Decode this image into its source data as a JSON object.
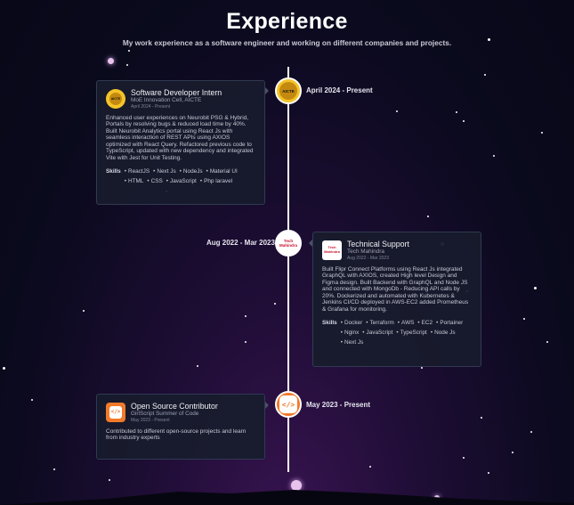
{
  "header": {
    "title": "Experience",
    "subtitle": "My work experience as a software engineer and working on different companies and projects."
  },
  "experiences": [
    {
      "role": "Software Developer Intern",
      "org": "MoE Innovation Cell, AICTE",
      "period": "April 2024 - Present",
      "date": "April 2024 - Present",
      "logo_text": "AICTE",
      "description": "Enhanced user experiences on Neurobit PSG & Hybrid, Portals by resolving bugs & reduced load time by 40%. Built Neurobit Analytics portal using React Js with seamless interaction of REST APIs using AXIOS optimized with React Query. Refactored previous code to TypeScript, updated with new dependency and integrated Vite with Jest for Unit Testing.",
      "skills_label": "Skills",
      "skills": [
        "ReactJS",
        "Next Js",
        "NodeJs",
        "Material UI",
        "HTML",
        "CSS",
        "JavaScript",
        "Php laravel"
      ]
    },
    {
      "role": "Technical Support",
      "org": "Tech Mahindra",
      "period": "Aug 2022 - Mar 2023",
      "date": "Aug 2022 - Mar 2023",
      "logo_text": "Tech Mahindra",
      "description": "Built Flipr Connect Platforms using React Js integrated GraphQL with AXIOS, created High level Design and Figma design. Built Backend with GraphQL and Node JS and connected with MongoDb - Reducing API calls by 20%. Dockerized and automated with Kubernetes & Jenkins CI/CD deployed in AWS-EC2 added Prometheus & Grafana for monitoring.",
      "skills_label": "Skills",
      "skills": [
        "Docker",
        "Terraform",
        "AWS",
        "EC2",
        "Portainer",
        "Nginx",
        "JavaScript",
        "TypeScript",
        "Node Js",
        "Next Js"
      ]
    },
    {
      "role": "Open Source Contributor",
      "org": "GirlScript Summer of Code",
      "period": "May 2023 - Present",
      "date": "May 2023 - Present",
      "logo_text": "</>",
      "description": "Contributed to different open-source projects and learn from industry experts"
    }
  ],
  "colors": {
    "background": "#0b0a1e",
    "card": "#181c2c",
    "card_border": "#303a52",
    "aicte_gold": "#f4c328",
    "techm_red": "#c8102e",
    "gss_orange": "#f07a2a"
  }
}
